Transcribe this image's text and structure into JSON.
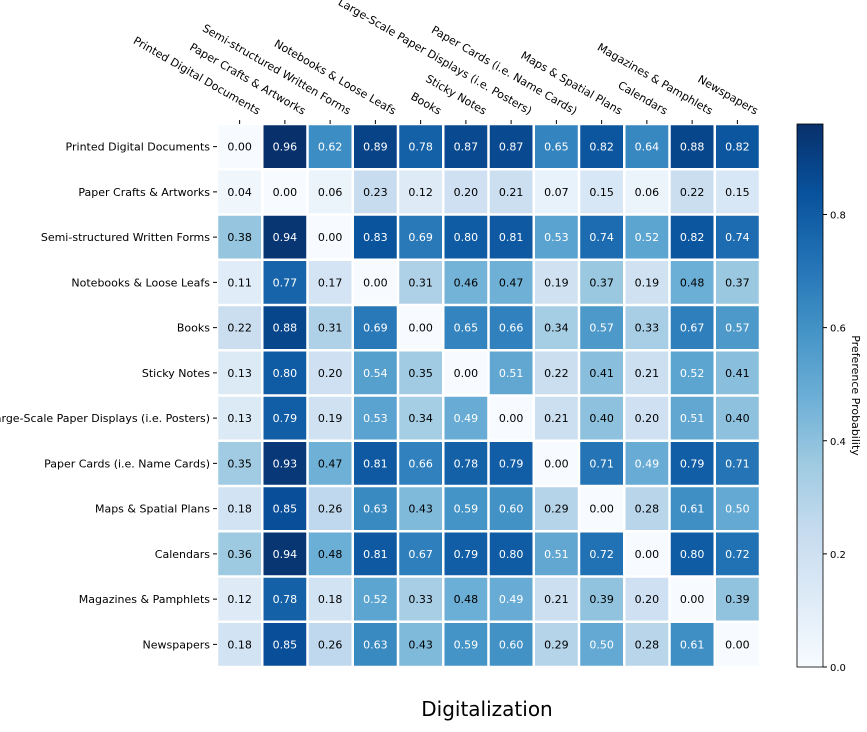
{
  "chart_data": {
    "type": "heatmap",
    "title": "Digitalization",
    "colorbar_label": "Preference Probability",
    "colorbar_ticks": [
      "0.0",
      "0.2",
      "0.4",
      "0.6",
      "0.8"
    ],
    "colorbar_range": [
      0,
      0.96
    ],
    "colormap": "Blues",
    "categories": [
      "Printed Digital Documents",
      "Paper Crafts & Artworks",
      "Semi-structured Written Forms",
      "Notebooks & Loose Leafs",
      "Books",
      "Sticky Notes",
      "Large-Scale Paper Displays (i.e. Posters)",
      "Paper Cards (i.e. Name Cards)",
      "Maps & Spatial Plans",
      "Calendars",
      "Magazines & Pamphlets",
      "Newspapers"
    ],
    "values": [
      [
        0.0,
        0.96,
        0.62,
        0.89,
        0.78,
        0.87,
        0.87,
        0.65,
        0.82,
        0.64,
        0.88,
        0.82
      ],
      [
        0.04,
        0.0,
        0.06,
        0.23,
        0.12,
        0.2,
        0.21,
        0.07,
        0.15,
        0.06,
        0.22,
        0.15
      ],
      [
        0.38,
        0.94,
        0.0,
        0.83,
        0.69,
        0.8,
        0.81,
        0.53,
        0.74,
        0.52,
        0.82,
        0.74
      ],
      [
        0.11,
        0.77,
        0.17,
        0.0,
        0.31,
        0.46,
        0.47,
        0.19,
        0.37,
        0.19,
        0.48,
        0.37
      ],
      [
        0.22,
        0.88,
        0.31,
        0.69,
        0.0,
        0.65,
        0.66,
        0.34,
        0.57,
        0.33,
        0.67,
        0.57
      ],
      [
        0.13,
        0.8,
        0.2,
        0.54,
        0.35,
        0.0,
        0.51,
        0.22,
        0.41,
        0.21,
        0.52,
        0.41
      ],
      [
        0.13,
        0.79,
        0.19,
        0.53,
        0.34,
        0.49,
        0.0,
        0.21,
        0.4,
        0.2,
        0.51,
        0.4
      ],
      [
        0.35,
        0.93,
        0.47,
        0.81,
        0.66,
        0.78,
        0.79,
        0.0,
        0.71,
        0.49,
        0.79,
        0.71
      ],
      [
        0.18,
        0.85,
        0.26,
        0.63,
        0.43,
        0.59,
        0.6,
        0.29,
        0.0,
        0.28,
        0.61,
        0.5
      ],
      [
        0.36,
        0.94,
        0.48,
        0.81,
        0.67,
        0.79,
        0.8,
        0.51,
        0.72,
        0.0,
        0.8,
        0.72
      ],
      [
        0.12,
        0.78,
        0.18,
        0.52,
        0.33,
        0.48,
        0.49,
        0.21,
        0.39,
        0.2,
        0.0,
        0.39
      ],
      [
        0.18,
        0.85,
        0.26,
        0.63,
        0.43,
        0.59,
        0.6,
        0.29,
        0.5,
        0.28,
        0.61,
        0.0
      ]
    ],
    "grid": false,
    "legend_position": "right"
  }
}
